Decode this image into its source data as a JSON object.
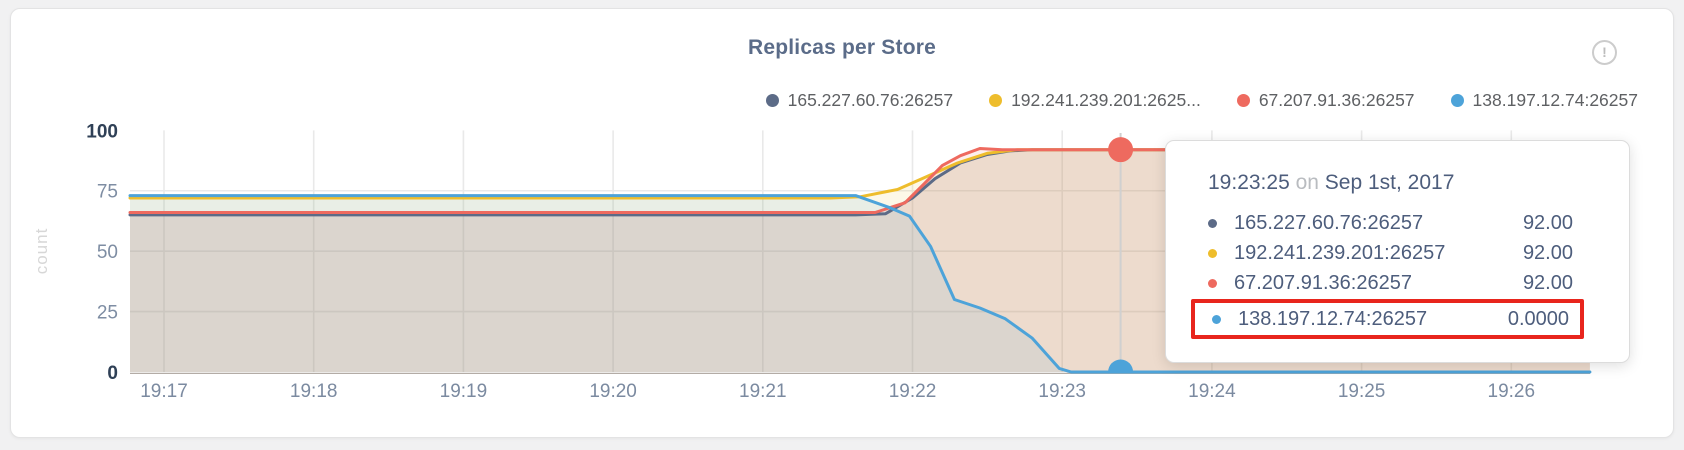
{
  "window": {
    "bg": "#f1f1f2"
  },
  "card": {
    "bg": "#ffffff",
    "border": "#e3e3e4"
  },
  "header": {
    "title": "Replicas per Store",
    "info_icon": "!"
  },
  "legend": {
    "items": [
      {
        "label": "165.227.60.76:26257",
        "color": "#5c6b87"
      },
      {
        "label": "192.241.239.201:2625...",
        "color": "#eebd2c"
      },
      {
        "label": "67.207.91.36:26257",
        "color": "#ee6a5f"
      },
      {
        "label": "138.197.12.74:26257",
        "color": "#4da3d9"
      }
    ]
  },
  "chart_data": {
    "type": "area",
    "title": "Replicas per Store",
    "ylabel": "count",
    "ylim": [
      0,
      100
    ],
    "grid": true,
    "legend_position": "top-right",
    "x_unit": "time HH:MM (minutes after 19:00 as decimal)",
    "x_domain": [
      16.773,
      26.525
    ],
    "y_ticks": [
      {
        "value": 100,
        "label": "100",
        "emph": true
      },
      {
        "value": 75,
        "label": "75",
        "emph": false
      },
      {
        "value": 50,
        "label": "50",
        "emph": false
      },
      {
        "value": 25,
        "label": "25",
        "emph": false
      },
      {
        "value": 0,
        "label": "0",
        "emph": true
      }
    ],
    "x_ticks": [
      {
        "t": 17,
        "label": "19:17"
      },
      {
        "t": 18,
        "label": "19:18"
      },
      {
        "t": 19,
        "label": "19:19"
      },
      {
        "t": 20,
        "label": "19:20"
      },
      {
        "t": 21,
        "label": "19:21"
      },
      {
        "t": 22,
        "label": "19:22"
      },
      {
        "t": 23,
        "label": "19:23"
      },
      {
        "t": 24,
        "label": "19:24"
      },
      {
        "t": 25,
        "label": "19:25"
      },
      {
        "t": 26,
        "label": "19:26"
      }
    ],
    "series": [
      {
        "name": "165.227.60.76:26257",
        "color": "#5c6b87",
        "points": [
          [
            16.773,
            65
          ],
          [
            21.62,
            65
          ],
          [
            21.82,
            65.5
          ],
          [
            22.0,
            72
          ],
          [
            22.15,
            80
          ],
          [
            22.32,
            86.5
          ],
          [
            22.5,
            90
          ],
          [
            22.65,
            91.5
          ],
          [
            22.8,
            92
          ],
          [
            26.525,
            92
          ]
        ]
      },
      {
        "name": "192.241.239.201:26257",
        "color": "#eebd2c",
        "points": [
          [
            16.773,
            72
          ],
          [
            21.45,
            72
          ],
          [
            21.65,
            72.5
          ],
          [
            21.9,
            75.5
          ],
          [
            22.1,
            81
          ],
          [
            22.3,
            86.5
          ],
          [
            22.5,
            90.5
          ],
          [
            22.7,
            92
          ],
          [
            26.525,
            92
          ]
        ]
      },
      {
        "name": "67.207.91.36:26257",
        "color": "#ee6a5f",
        "points": [
          [
            16.773,
            66
          ],
          [
            21.75,
            66
          ],
          [
            21.95,
            70
          ],
          [
            22.08,
            78
          ],
          [
            22.2,
            85.5
          ],
          [
            22.32,
            89.5
          ],
          [
            22.45,
            92.5
          ],
          [
            22.6,
            92
          ],
          [
            26.525,
            92
          ]
        ]
      },
      {
        "name": "138.197.12.74:26257",
        "color": "#4da3d9",
        "points": [
          [
            16.773,
            73
          ],
          [
            21.62,
            73
          ],
          [
            21.85,
            68
          ],
          [
            21.98,
            64.5
          ],
          [
            22.12,
            52
          ],
          [
            22.28,
            30
          ],
          [
            22.45,
            26.5
          ],
          [
            22.62,
            22
          ],
          [
            22.8,
            14
          ],
          [
            22.98,
            1.5
          ],
          [
            23.06,
            0
          ],
          [
            26.525,
            0
          ]
        ]
      }
    ],
    "hover": {
      "t": 23.39,
      "time_label": "19:23:25",
      "dots": [
        {
          "color": "#ee6a5f",
          "value": 92
        },
        {
          "color": "#4da3d9",
          "value": 0
        }
      ]
    }
  },
  "tooltip": {
    "time": "19:23:25",
    "preposition": "on",
    "date": "Sep 1st, 2017",
    "highlight_color": "#e8251d",
    "rows": [
      {
        "label": "165.227.60.76:26257",
        "value": "92.00",
        "color": "#5c6b87",
        "highlighted": false
      },
      {
        "label": "192.241.239.201:26257",
        "value": "92.00",
        "color": "#eebd2c",
        "highlighted": false
      },
      {
        "label": "67.207.91.36:26257",
        "value": "92.00",
        "color": "#ee6a5f",
        "highlighted": false
      },
      {
        "label": "138.197.12.74:26257",
        "value": "0.0000",
        "color": "#4da3d9",
        "highlighted": true
      }
    ]
  }
}
